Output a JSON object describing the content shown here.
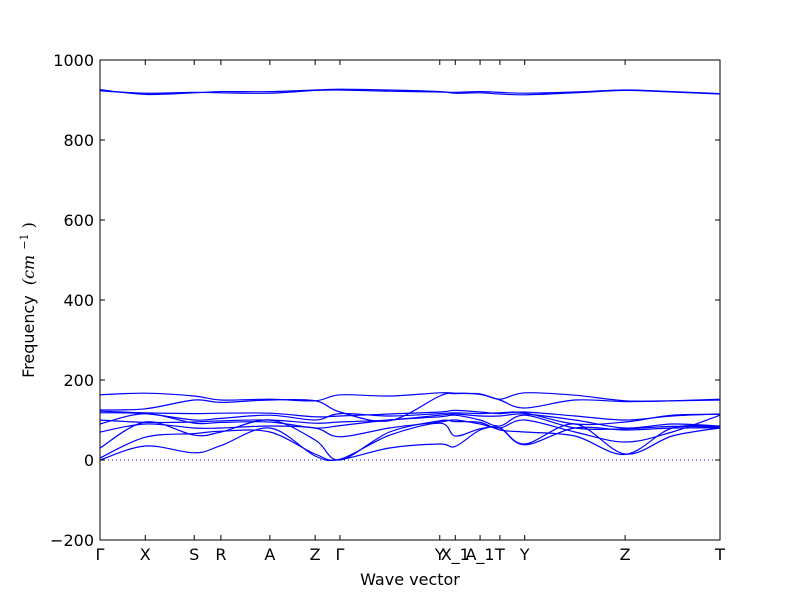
{
  "chart_data": {
    "type": "line",
    "title": "",
    "xlabel": "Wave vector",
    "ylabel": "Frequency",
    "ylabel_unit": "(cm",
    "ylabel_unit_exp": "−1",
    "ylabel_unit_close": ")",
    "ylim": [
      -200,
      1000
    ],
    "yticks": [
      -200,
      0,
      200,
      400,
      600,
      800,
      1000
    ],
    "ytick_labels": [
      "−200",
      "0",
      "200",
      "400",
      "600",
      "800",
      "1000"
    ],
    "x_range": [
      0,
      100
    ],
    "high_symmetry_points": [
      {
        "label": "Γ",
        "x": 0
      },
      {
        "label": "X",
        "x": 7.3
      },
      {
        "label": "S",
        "x": 15.2
      },
      {
        "label": "R",
        "x": 19.5
      },
      {
        "label": "A",
        "x": 27.4
      },
      {
        "label": "Z",
        "x": 34.7
      },
      {
        "label": "Γ",
        "x": 38.7
      },
      {
        "label": "Y",
        "x": 54.8
      },
      {
        "label": "X_1",
        "x": 57.3
      },
      {
        "label": "A_1",
        "x": 61.3
      },
      {
        "label": "T",
        "x": 64.5
      },
      {
        "label": "Y",
        "x": 68.5
      },
      {
        "label": "Z",
        "x": 84.7
      },
      {
        "label": "T",
        "x": 100
      }
    ],
    "line_color": "#0000ff",
    "zero_line": true,
    "grid": false,
    "legend": "none",
    "series": [
      {
        "x": [
          0,
          7.3,
          15.2,
          19.5,
          27.4,
          34.7,
          38.7,
          46.7,
          54.8,
          57.3,
          61.3,
          64.5,
          68.5,
          76.6,
          84.7,
          92.3,
          100
        ],
        "values": [
          923,
          917,
          919,
          918,
          917,
          924,
          925,
          922,
          920,
          919,
          921,
          919,
          917,
          920,
          925,
          921,
          916
        ]
      },
      {
        "x": [
          0,
          7.3,
          15.2,
          19.5,
          27.4,
          34.7,
          38.7,
          46.7,
          54.8,
          57.3,
          61.3,
          64.5,
          68.5,
          76.6,
          84.7,
          92.3,
          100
        ],
        "values": [
          926,
          914,
          918,
          921,
          921,
          925,
          927,
          925,
          921,
          917,
          918,
          915,
          913,
          918,
          924,
          920,
          915
        ]
      },
      {
        "x": [
          0,
          7.3,
          15.2,
          19.5,
          27.4,
          34.7,
          38.7,
          46.7,
          54.8,
          57.3,
          61.3,
          64.5,
          68.5,
          76.6,
          84.7,
          92.3,
          100
        ],
        "values": [
          163,
          167,
          160,
          150,
          152,
          148,
          163,
          160,
          168,
          167,
          165,
          152,
          168,
          162,
          148,
          148,
          150
        ]
      },
      {
        "x": [
          0,
          7.3,
          15.2,
          19.5,
          27.4,
          34.7,
          38.7,
          46.7,
          54.8,
          57.3,
          61.3,
          64.5,
          68.5,
          76.6,
          84.7,
          92.3,
          100
        ],
        "values": [
          125,
          128,
          150,
          144,
          150,
          148,
          120,
          98,
          160,
          166,
          164,
          150,
          130,
          150,
          146,
          148,
          152
        ]
      },
      {
        "x": [
          0,
          7.3,
          15.2,
          19.5,
          27.4,
          34.7,
          38.7,
          46.7,
          54.8,
          57.3,
          61.3,
          64.5,
          68.5,
          76.6,
          84.7,
          92.3,
          100
        ],
        "values": [
          122,
          118,
          116,
          117,
          117,
          108,
          110,
          115,
          120,
          124,
          120,
          116,
          120,
          110,
          100,
          110,
          115
        ]
      },
      {
        "x": [
          0,
          7.3,
          15.2,
          19.5,
          27.4,
          34.7,
          38.7,
          46.7,
          54.8,
          57.3,
          61.3,
          64.5,
          68.5,
          76.6,
          84.7,
          92.3,
          100
        ],
        "values": [
          118,
          116,
          100,
          104,
          112,
          100,
          116,
          110,
          116,
          118,
          116,
          118,
          118,
          90,
          95,
          112,
          114
        ]
      },
      {
        "x": [
          0,
          7.3,
          15.2,
          19.5,
          27.4,
          34.7,
          38.7,
          46.7,
          54.8,
          57.3,
          61.3,
          64.5,
          68.5,
          76.6,
          84.7,
          92.3,
          100
        ],
        "values": [
          100,
          94,
          95,
          98,
          100,
          92,
          95,
          100,
          112,
          115,
          110,
          110,
          115,
          100,
          80,
          90,
          85
        ]
      },
      {
        "x": [
          0,
          7.3,
          15.2,
          19.5,
          27.4,
          34.7,
          38.7,
          46.7,
          54.8,
          57.3,
          61.3,
          64.5,
          68.5,
          76.6,
          84.7,
          92.3,
          100
        ],
        "values": [
          90,
          116,
          92,
          94,
          95,
          80,
          86,
          100,
          108,
          112,
          100,
          85,
          112,
          80,
          78,
          84,
          82
        ]
      },
      {
        "x": [
          0,
          7.3,
          15.2,
          19.5,
          27.4,
          34.7,
          38.7,
          46.7,
          54.8,
          57.3,
          61.3,
          64.5,
          68.5,
          76.6,
          84.7,
          92.3,
          100
        ],
        "values": [
          70,
          90,
          80,
          80,
          85,
          80,
          58,
          80,
          95,
          100,
          90,
          80,
          100,
          70,
          45,
          70,
          112
        ]
      },
      {
        "x": [
          0,
          7.3,
          15.2,
          19.5,
          27.4,
          34.7,
          38.7,
          46.7,
          54.8,
          57.3,
          61.3,
          64.5,
          68.5,
          76.6,
          84.7,
          92.3,
          100
        ],
        "values": [
          30,
          95,
          62,
          70,
          100,
          50,
          0,
          70,
          98,
          96,
          94,
          75,
          70,
          60,
          14,
          80,
          84
        ]
      },
      {
        "x": [
          0,
          7.3,
          15.2,
          19.5,
          27.4,
          34.7,
          38.7,
          46.7,
          54.8,
          57.3,
          61.3,
          64.5,
          68.5,
          76.6,
          84.7,
          92.3,
          100
        ],
        "values": [
          5,
          57,
          66,
          72,
          70,
          15,
          2,
          62,
          92,
          60,
          78,
          80,
          38,
          80,
          75,
          80,
          80
        ]
      },
      {
        "x": [
          0,
          7.3,
          15.2,
          19.5,
          27.4,
          34.7,
          38.7,
          46.7,
          54.8,
          57.3,
          61.3,
          64.5,
          68.5,
          76.6,
          84.7,
          92.3,
          100
        ],
        "values": [
          0,
          35,
          18,
          36,
          80,
          10,
          1,
          30,
          40,
          34,
          75,
          80,
          40,
          90,
          15,
          60,
          80
        ]
      }
    ]
  }
}
